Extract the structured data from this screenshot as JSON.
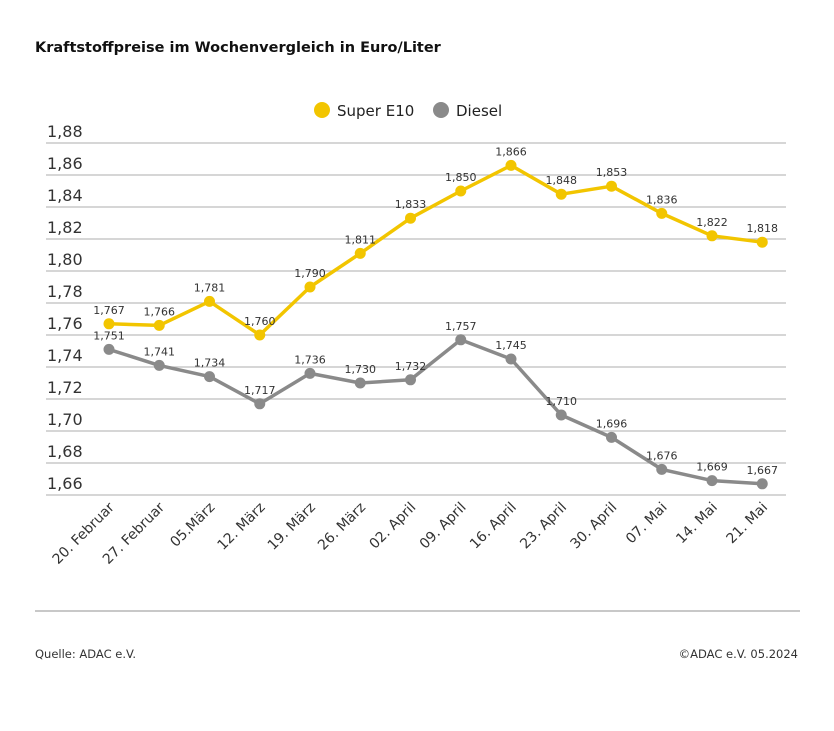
{
  "title": "Kraftstoffpreise im Wochenvergleich in Euro/Liter",
  "footer": {
    "source": "Quelle: ADAC e.V.",
    "copyright": "©ADAC e.V. 05.2024"
  },
  "chart_data": {
    "type": "line",
    "title": "Kraftstoffpreise im Wochenvergleich in Euro/Liter",
    "categories": [
      "20. Februar",
      "27. Februar",
      "05.März",
      "12. März",
      "19. März",
      "26. März",
      "02. April",
      "09. April",
      "16. April",
      "23. April",
      "30. April",
      "07. Mai",
      "14. Mai",
      "21. Mai"
    ],
    "series": [
      {
        "name": "Super E10",
        "color": "#f2c500",
        "values": [
          1.767,
          1.766,
          1.781,
          1.76,
          1.79,
          1.811,
          1.833,
          1.85,
          1.866,
          1.848,
          1.853,
          1.836,
          1.822,
          1.818
        ]
      },
      {
        "name": "Diesel",
        "color": "#8a8a8a",
        "values": [
          1.751,
          1.741,
          1.734,
          1.717,
          1.736,
          1.73,
          1.732,
          1.757,
          1.745,
          1.71,
          1.696,
          1.676,
          1.669,
          1.667
        ]
      }
    ],
    "ylim": [
      1.66,
      1.88
    ],
    "yticks": [
      "1,66",
      "1,68",
      "1,70",
      "1,72",
      "1,74",
      "1,76",
      "1,78",
      "1,80",
      "1,82",
      "1,84",
      "1,86",
      "1,88"
    ],
    "grid": true,
    "legend": "top-center",
    "decimal_separator": ","
  }
}
